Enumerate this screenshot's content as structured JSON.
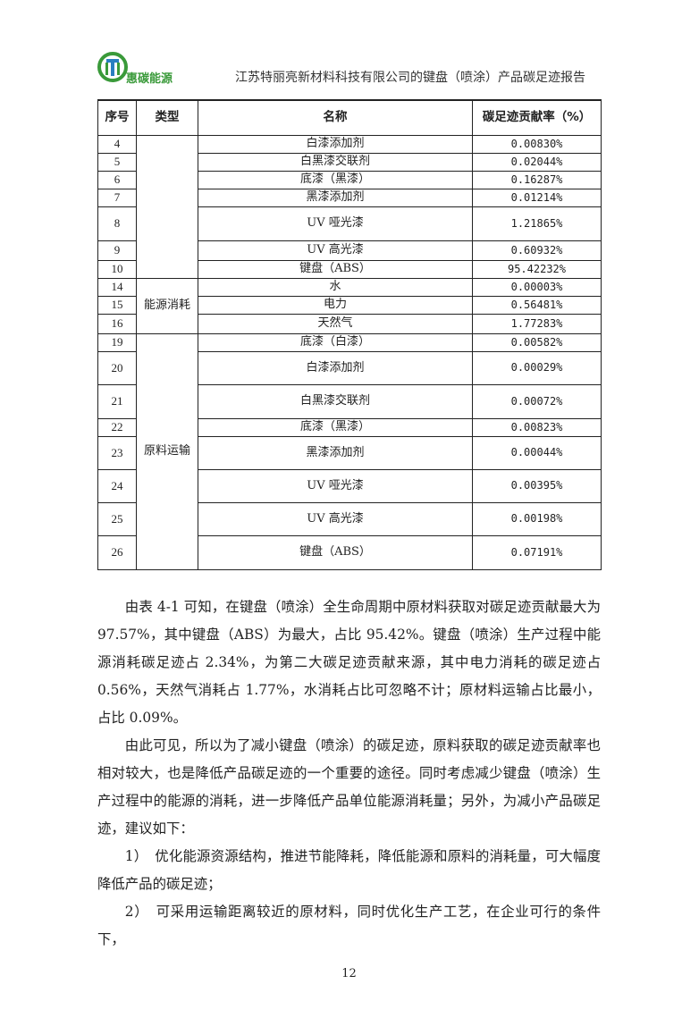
{
  "header": {
    "brand": "惠碳能源",
    "title": "江苏特丽亮新材料科技有限公司的键盘（喷涂）产品碳足迹报告",
    "brand_color": "#3a9a3a"
  },
  "table": {
    "columns": [
      "序号",
      "类型",
      "名称",
      "碳足迹贡献率（%）"
    ],
    "groups": [
      {
        "type": "",
        "rows": [
          {
            "no": "4",
            "name": "白漆添加剂",
            "rate": "0.00830%"
          },
          {
            "no": "5",
            "name": "白黑漆交联剂",
            "rate": "0.02044%"
          },
          {
            "no": "6",
            "name": "底漆（黑漆）",
            "rate": "0.16287%"
          },
          {
            "no": "7",
            "name": "黑漆添加剂",
            "rate": "0.01214%"
          },
          {
            "no": "8",
            "name": "UV 哑光漆",
            "rate": "1.21865%"
          },
          {
            "no": "9",
            "name": "UV 高光漆",
            "rate": "0.60932%"
          },
          {
            "no": "10",
            "name": "键盘（ABS）",
            "rate": "95.42232%"
          }
        ]
      },
      {
        "type": "能源消耗",
        "rows": [
          {
            "no": "14",
            "name": "水",
            "rate": "0.00003%"
          },
          {
            "no": "15",
            "name": "电力",
            "rate": "0.56481%"
          },
          {
            "no": "16",
            "name": "天然气",
            "rate": "1.77283%"
          }
        ]
      },
      {
        "type": "原料运输",
        "rows": [
          {
            "no": "19",
            "name": "底漆（白漆）",
            "rate": "0.00582%"
          },
          {
            "no": "20",
            "name": "白漆添加剂",
            "rate": "0.00029%"
          },
          {
            "no": "21",
            "name": "白黑漆交联剂",
            "rate": "0.00072%"
          },
          {
            "no": "22",
            "name": "底漆（黑漆）",
            "rate": "0.00823%"
          },
          {
            "no": "23",
            "name": "黑漆添加剂",
            "rate": "0.00044%"
          },
          {
            "no": "24",
            "name": "UV 哑光漆",
            "rate": "0.00395%"
          },
          {
            "no": "25",
            "name": "UV 高光漆",
            "rate": "0.00198%"
          },
          {
            "no": "26",
            "name": "键盘（ABS）",
            "rate": "0.07191%"
          }
        ]
      }
    ]
  },
  "paragraphs": [
    "由表 4-1 可知，在键盘（喷涂）全生命周期中原材料获取对碳足迹贡献最大为 97.57%，其中键盘（ABS）为最大，占比 95.42%。键盘（喷涂）生产过程中能源消耗碳足迹占 2.34%，为第二大碳足迹贡献来源，其中电力消耗的碳足迹占 0.56%，天然气消耗占 1.77%，水消耗占比可忽略不计；原材料运输占比最小，占比 0.09%。",
    "由此可见，所以为了减小键盘（喷涂）的碳足迹，原料获取的碳足迹贡献率也相对较大，也是降低产品碳足迹的一个重要的途径。同时考虑减少键盘（喷涂）生产过程中的能源的消耗，进一步降低产品单位能源消耗量；另外，为减小产品碳足迹，建议如下：",
    "1）　优化能源资源结构，推进节能降耗，降低能源和原料的消耗量，可大幅度降低产品的碳足迹；",
    "2）　可采用运输距离较近的原材料，同时优化生产工艺，在企业可行的条件下，"
  ],
  "page_number": "12"
}
